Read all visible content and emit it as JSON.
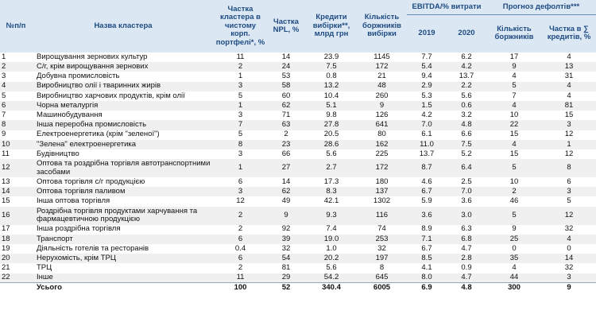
{
  "headers": {
    "num": "№п/п",
    "name": "Назва кластера",
    "portfolio_share": "Частка кластера в чистому корп. портфелі*, %",
    "npl_share": "Частка NPL, %",
    "credits": "Кредити вибірки**, млрд грн",
    "borrowers": "Кількість боржників вибірки",
    "ebitda_group": "EBITDA/% витрати",
    "y2019": "2019",
    "y2020": "2020",
    "default_group": "Прогноз дефолтів***",
    "def_count": "Кількість боржників",
    "def_share": "Частка в ∑ кредитів, %"
  },
  "rows": [
    {
      "n": "1",
      "name": "Вирощування зернових культур",
      "share": "11",
      "npl": "14",
      "credits": "23.9",
      "borrowers": "1145",
      "e19": "7.7",
      "e20": "6.2",
      "dcount": "17",
      "dshare": "4"
    },
    {
      "n": "2",
      "name": "С/г, крім вирощування зернових",
      "share": "2",
      "npl": "24",
      "credits": "7.5",
      "borrowers": "172",
      "e19": "5.4",
      "e20": "4.2",
      "dcount": "9",
      "dshare": "13"
    },
    {
      "n": "3",
      "name": "Добувна промисловість",
      "share": "1",
      "npl": "53",
      "credits": "0.8",
      "borrowers": "21",
      "e19": "9.4",
      "e20": "13.7",
      "dcount": "4",
      "dshare": "31"
    },
    {
      "n": "4",
      "name": "Виробництво олії і тваринних жирів",
      "share": "3",
      "npl": "58",
      "credits": "13.2",
      "borrowers": "48",
      "e19": "2.9",
      "e20": "2.2",
      "dcount": "5",
      "dshare": "4"
    },
    {
      "n": "5",
      "name": "Виробництво харчових продуктів, крім олії",
      "share": "5",
      "npl": "60",
      "credits": "10.4",
      "borrowers": "260",
      "e19": "5.3",
      "e20": "5.6",
      "dcount": "7",
      "dshare": "4"
    },
    {
      "n": "6",
      "name": "Чорна металургія",
      "share": "1",
      "npl": "62",
      "credits": "5.1",
      "borrowers": "9",
      "e19": "1.5",
      "e20": "0.6",
      "dcount": "4",
      "dshare": "81"
    },
    {
      "n": "7",
      "name": "Машинобудування",
      "share": "3",
      "npl": "71",
      "credits": "9.8",
      "borrowers": "126",
      "e19": "4.2",
      "e20": "3.2",
      "dcount": "10",
      "dshare": "15"
    },
    {
      "n": "8",
      "name": "Інша переробна промисловість",
      "share": "7",
      "npl": "63",
      "credits": "27.8",
      "borrowers": "641",
      "e19": "7.0",
      "e20": "4.8",
      "dcount": "22",
      "dshare": "3"
    },
    {
      "n": "9",
      "name": "Електроенергетика (крім \"зеленої\")",
      "share": "5",
      "npl": "2",
      "credits": "20.5",
      "borrowers": "80",
      "e19": "6.1",
      "e20": "6.6",
      "dcount": "15",
      "dshare": "12"
    },
    {
      "n": "10",
      "name": "\"Зелена\" електроенергетика",
      "share": "8",
      "npl": "23",
      "credits": "28.6",
      "borrowers": "162",
      "e19": "11.0",
      "e20": "7.5",
      "dcount": "4",
      "dshare": "1"
    },
    {
      "n": "11",
      "name": "Будівництво",
      "share": "3",
      "npl": "66",
      "credits": "5.6",
      "borrowers": "225",
      "e19": "13.7",
      "e20": "5.2",
      "dcount": "15",
      "dshare": "12"
    },
    {
      "n": "12",
      "name": "Оптова та роздрібна торгівля автотранспортними засобами",
      "share": "1",
      "npl": "27",
      "credits": "2.7",
      "borrowers": "172",
      "e19": "8.7",
      "e20": "6.4",
      "dcount": "5",
      "dshare": "8"
    },
    {
      "n": "13",
      "name": "Оптова торгівля с/г продукцією",
      "share": "6",
      "npl": "14",
      "credits": "17.3",
      "borrowers": "180",
      "e19": "4.6",
      "e20": "2.5",
      "dcount": "10",
      "dshare": "6"
    },
    {
      "n": "14",
      "name": "Оптова торгівля паливом",
      "share": "3",
      "npl": "62",
      "credits": "8.3",
      "borrowers": "137",
      "e19": "6.7",
      "e20": "7.0",
      "dcount": "2",
      "dshare": "3"
    },
    {
      "n": "15",
      "name": "Інша оптова торгівля",
      "share": "12",
      "npl": "49",
      "credits": "42.1",
      "borrowers": "1302",
      "e19": "5.9",
      "e20": "3.6",
      "dcount": "46",
      "dshare": "5"
    },
    {
      "n": "16",
      "name": "Роздрібна торгівля продуктами харчування та фармацевтичною продукцією",
      "share": "2",
      "npl": "9",
      "credits": "9.3",
      "borrowers": "116",
      "e19": "3.6",
      "e20": "3.0",
      "dcount": "5",
      "dshare": "12"
    },
    {
      "n": "17",
      "name": "Інша роздрібна торгівля",
      "share": "2",
      "npl": "92",
      "credits": "7.4",
      "borrowers": "74",
      "e19": "8.9",
      "e20": "6.3",
      "dcount": "9",
      "dshare": "32"
    },
    {
      "n": "18",
      "name": "Транспорт",
      "share": "6",
      "npl": "39",
      "credits": "19.0",
      "borrowers": "253",
      "e19": "7.1",
      "e20": "6.8",
      "dcount": "25",
      "dshare": "4"
    },
    {
      "n": "19",
      "name": "Діяльність готелів та ресторанів",
      "share": "0.4",
      "npl": "32",
      "credits": "1.0",
      "borrowers": "32",
      "e19": "6.7",
      "e20": "4.7",
      "dcount": "0",
      "dshare": "0"
    },
    {
      "n": "20",
      "name": "Нерухомість, крім ТРЦ",
      "share": "6",
      "npl": "54",
      "credits": "20.2",
      "borrowers": "197",
      "e19": "8.5",
      "e20": "2.8",
      "dcount": "35",
      "dshare": "14"
    },
    {
      "n": "21",
      "name": "ТРЦ",
      "share": "2",
      "npl": "81",
      "credits": "5.6",
      "borrowers": "8",
      "e19": "4.1",
      "e20": "0.9",
      "dcount": "4",
      "dshare": "32"
    },
    {
      "n": "22",
      "name": "Інше",
      "share": "11",
      "npl": "29",
      "credits": "54.2",
      "borrowers": "645",
      "e19": "8.0",
      "e20": "4.7",
      "dcount": "44",
      "dshare": "3"
    }
  ],
  "total": {
    "n": "",
    "name": "Усього",
    "share": "100",
    "npl": "52",
    "credits": "340.4",
    "borrowers": "6005",
    "e19": "6.9",
    "e20": "4.8",
    "dcount": "300",
    "dshare": "9"
  },
  "colors": {
    "header_bg": "#dbe8f4",
    "header_text": "#1e4a82",
    "alt_row": "#f0f0f0"
  }
}
